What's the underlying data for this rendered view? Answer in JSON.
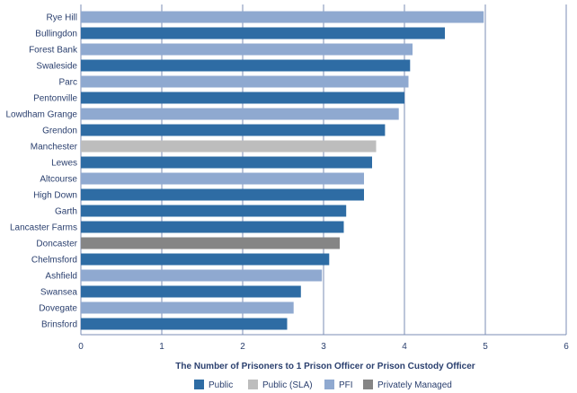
{
  "chart_data": {
    "type": "bar",
    "orientation": "horizontal",
    "xlabel": "The Number of Prisoners to 1 Prison Officer or Prison Custody Officer",
    "xlim": [
      0,
      6
    ],
    "xticks": [
      "0",
      "1",
      "2",
      "3",
      "4",
      "5",
      "6"
    ],
    "grid": true,
    "legend_position": "bottom",
    "legend": [
      {
        "key": "public",
        "name": "Public",
        "color": "#2e6ca4"
      },
      {
        "key": "public_sla",
        "name": "Public (SLA)",
        "color": "#bdbdbd"
      },
      {
        "key": "pfi",
        "name": "PFI",
        "color": "#8fa9d0"
      },
      {
        "key": "private",
        "name": "Privately Managed",
        "color": "#858585"
      }
    ],
    "categories": [
      "Rye Hill",
      "Bullingdon",
      "Forest Bank",
      "Swaleside",
      "Parc",
      "Pentonville",
      "Lowdham Grange",
      "Grendon",
      "Manchester",
      "Lewes",
      "Altcourse",
      "High Down",
      "Garth",
      "Lancaster Farms",
      "Doncaster",
      "Chelmsford",
      "Ashfield",
      "Swansea",
      "Dovegate",
      "Brinsford"
    ],
    "values": [
      4.98,
      4.5,
      4.1,
      4.07,
      4.05,
      4.0,
      3.93,
      3.76,
      3.65,
      3.6,
      3.5,
      3.5,
      3.28,
      3.25,
      3.2,
      3.07,
      2.98,
      2.72,
      2.63,
      2.55
    ],
    "groups": [
      "pfi",
      "public",
      "pfi",
      "public",
      "pfi",
      "public",
      "pfi",
      "public",
      "public_sla",
      "public",
      "pfi",
      "public",
      "public",
      "public",
      "private",
      "public",
      "pfi",
      "public",
      "pfi",
      "public"
    ]
  }
}
